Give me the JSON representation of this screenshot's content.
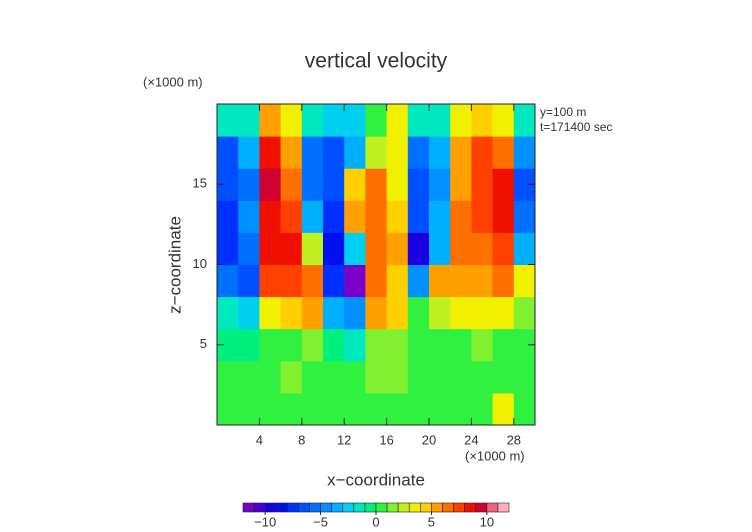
{
  "chart_data": {
    "type": "heatmap",
    "title": "vertical velocity",
    "x_unit": "(×1000 m)",
    "y_unit": "(×1000 m)",
    "notes": [
      "y=100 m",
      "t=171400 sec"
    ],
    "x_label": "x−coordinate",
    "y_label": "z−coordinate",
    "xlim": [
      0,
      30
    ],
    "ylim": [
      0,
      20
    ],
    "xticks": [
      4,
      8,
      12,
      16,
      20,
      24,
      28
    ],
    "yticks": [
      5,
      10,
      15
    ],
    "x": [
      1,
      3,
      5,
      7,
      9,
      11,
      13,
      15,
      17,
      19,
      21,
      23,
      25,
      27,
      29
    ],
    "y": [
      1,
      3,
      5,
      7,
      9,
      11,
      13,
      15,
      17,
      19
    ],
    "z": [
      [
        0.5,
        0.5,
        0.5,
        0.5,
        0.5,
        0.5,
        0.5,
        0.5,
        0.5,
        0.5,
        0.5,
        0.5,
        0.5,
        3.5,
        0.5
      ],
      [
        0.5,
        0.5,
        0.5,
        1.5,
        0.5,
        0.5,
        0.5,
        1.5,
        1.5,
        0.5,
        0.5,
        0.5,
        0.5,
        0.5,
        0.5
      ],
      [
        -0.5,
        -0.5,
        0.5,
        0.5,
        1.5,
        -0.5,
        -1.5,
        1.5,
        1.5,
        0.5,
        0.5,
        0.5,
        1.5,
        0.5,
        0.5
      ],
      [
        -1.5,
        -2.5,
        3.5,
        4.5,
        5.5,
        -3.5,
        -4.5,
        5.5,
        4.5,
        0.5,
        2.5,
        3.5,
        3.5,
        3.5,
        1.5
      ],
      [
        -5.5,
        -6.5,
        7.5,
        7.5,
        6.5,
        -7.5,
        -11.5,
        6.5,
        4.5,
        -4.5,
        5.5,
        5.5,
        5.5,
        6.5,
        3.5
      ],
      [
        -7.5,
        -5.5,
        8.5,
        8.5,
        2.5,
        -8.5,
        -2.5,
        6.5,
        5.5,
        -9.5,
        -3.5,
        6.5,
        6.5,
        7.5,
        -3.5
      ],
      [
        -7.5,
        -4.5,
        8.5,
        7.5,
        -3.5,
        -7.5,
        5.5,
        6.5,
        4.5,
        -6.5,
        -3.5,
        6.5,
        7.5,
        8.5,
        -5.5
      ],
      [
        -6.5,
        -5.5,
        9.5,
        6.5,
        -5.5,
        -6.5,
        4.5,
        6.5,
        3.5,
        -6.5,
        -4.5,
        5.5,
        7.5,
        8.5,
        -6.5
      ],
      [
        -6.5,
        -3.5,
        8.5,
        5.5,
        -5.5,
        -6.5,
        -3.5,
        2.5,
        3.5,
        -5.5,
        -3.5,
        5.5,
        7.5,
        6.5,
        -4.5
      ],
      [
        -1.5,
        -1.5,
        5.5,
        3.5,
        -1.5,
        -2.5,
        -2.5,
        0.5,
        3.5,
        -1.5,
        -1.5,
        3.5,
        4.5,
        3.5,
        -1.5
      ]
    ],
    "colorbar": {
      "levels": [
        -12,
        -11,
        -10,
        -9,
        -8,
        -7,
        -6,
        -5,
        -4,
        -3,
        -2,
        -1,
        0,
        1,
        2,
        3,
        4,
        5,
        6,
        7,
        8,
        9,
        10,
        11,
        12
      ],
      "colors": [
        "#7a00c8",
        "#4b00d8",
        "#1a00e0",
        "#0010f0",
        "#0030ff",
        "#0050ff",
        "#0070ff",
        "#0090ff",
        "#00b0ff",
        "#00d0f0",
        "#00e8c0",
        "#00f080",
        "#30f040",
        "#80f030",
        "#c0f020",
        "#f0f000",
        "#ffd000",
        "#ffa000",
        "#ff7000",
        "#ff4000",
        "#f01000",
        "#d00030",
        "#f06080",
        "#ffb0c0"
      ],
      "ticks": [
        {
          "value": -10,
          "label": "−10"
        },
        {
          "value": -5,
          "label": "−5"
        },
        0,
        5,
        10
      ]
    }
  }
}
